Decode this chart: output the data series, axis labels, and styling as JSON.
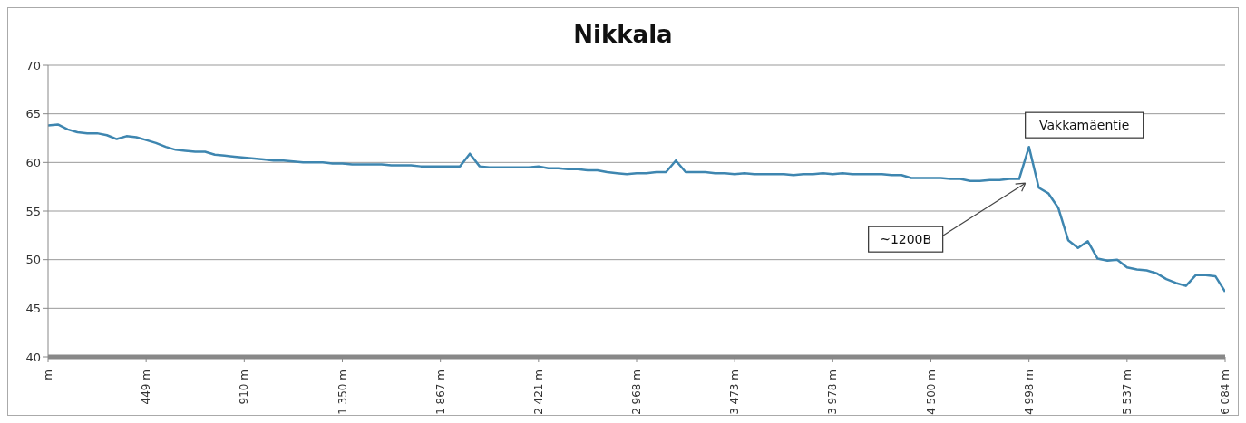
{
  "chart_data": {
    "type": "line",
    "title": "Nikkala",
    "categories": [
      "m",
      null,
      null,
      null,
      null,
      null,
      null,
      null,
      null,
      null,
      "449 m",
      null,
      null,
      null,
      null,
      null,
      null,
      null,
      null,
      null,
      "910 m",
      null,
      null,
      null,
      null,
      null,
      null,
      null,
      null,
      null,
      "1 350 m",
      null,
      null,
      null,
      null,
      null,
      null,
      null,
      null,
      null,
      "1 867 m",
      null,
      null,
      null,
      null,
      null,
      null,
      null,
      null,
      null,
      "2 421 m",
      null,
      null,
      null,
      null,
      null,
      null,
      null,
      null,
      null,
      "2 968 m",
      null,
      null,
      null,
      null,
      null,
      null,
      null,
      null,
      null,
      "3 473 m",
      null,
      null,
      null,
      null,
      null,
      null,
      null,
      null,
      null,
      "3 978 m",
      null,
      null,
      null,
      null,
      null,
      null,
      null,
      null,
      null,
      "4 500 m",
      null,
      null,
      null,
      null,
      null,
      null,
      null,
      null,
      null,
      "4 998 m",
      null,
      null,
      null,
      null,
      null,
      null,
      null,
      null,
      null,
      "5 537 m",
      null,
      null,
      null,
      null,
      null,
      null,
      null,
      null,
      null,
      "6 084 m"
    ],
    "series": [
      {
        "color": "#3e86b0",
        "values": [
          63.8,
          63.9,
          63.4,
          63.1,
          63.0,
          63.0,
          62.8,
          62.4,
          62.7,
          62.6,
          62.3,
          62.0,
          61.6,
          61.3,
          61.2,
          61.1,
          61.1,
          60.8,
          60.7,
          60.6,
          60.5,
          60.4,
          60.3,
          60.2,
          60.2,
          60.1,
          60.0,
          60.0,
          60.0,
          59.9,
          59.9,
          59.8,
          59.8,
          59.8,
          59.8,
          59.7,
          59.7,
          59.7,
          59.6,
          59.6,
          59.6,
          59.6,
          59.6,
          60.9,
          59.6,
          59.5,
          59.5,
          59.5,
          59.5,
          59.5,
          59.6,
          59.4,
          59.4,
          59.3,
          59.3,
          59.2,
          59.2,
          59.0,
          58.9,
          58.8,
          58.9,
          58.9,
          59.0,
          59.0,
          60.2,
          59.0,
          59.0,
          59.0,
          58.9,
          58.9,
          58.8,
          58.9,
          58.8,
          58.8,
          58.8,
          58.8,
          58.7,
          58.8,
          58.8,
          58.9,
          58.8,
          58.9,
          58.8,
          58.8,
          58.8,
          58.8,
          58.7,
          58.7,
          58.4,
          58.4,
          58.4,
          58.4,
          58.3,
          58.3,
          58.1,
          58.1,
          58.2,
          58.2,
          58.3,
          58.3,
          61.6,
          57.4,
          56.8,
          55.3,
          52.0,
          51.2,
          51.9,
          50.1,
          49.9,
          50.0,
          49.2,
          49.0,
          48.9,
          48.6,
          48.0,
          47.6,
          47.3,
          48.4,
          48.4,
          48.3,
          46.7
        ]
      }
    ],
    "ylim": [
      40,
      70
    ],
    "yticks": [
      40,
      45,
      50,
      55,
      60,
      65,
      70
    ],
    "grid": "y",
    "annotations": [
      {
        "text": "Vakkamäentie",
        "x": "4 998 m",
        "y": 61.6
      },
      "~1200B"
    ]
  }
}
